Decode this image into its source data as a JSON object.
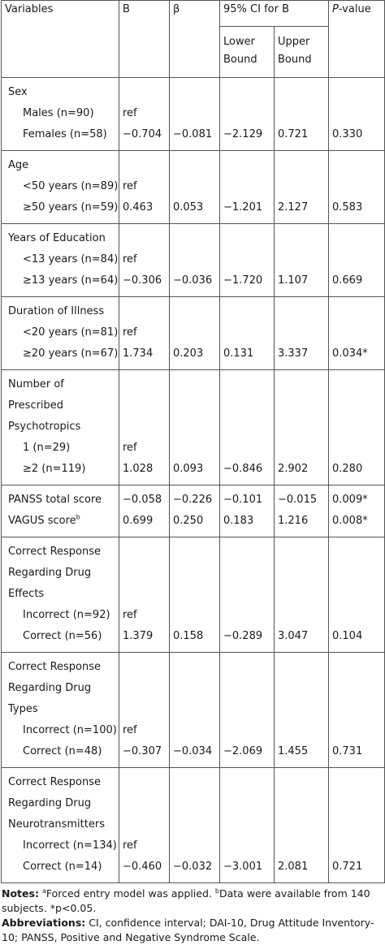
{
  "header": {
    "variables": "Variables",
    "b": "B",
    "beta": "β",
    "ci": "95% CI for B",
    "p": "P-value",
    "lower": "Lower Bound",
    "upper": "Upper Bound"
  },
  "rows": {
    "sex": {
      "label": "Sex",
      "a_label": "Males (n=90)",
      "a_b": "ref",
      "b_label": "Females (n=58)",
      "b_b": "−0.704",
      "b_beta": "−0.081",
      "b_lower": "−2.129",
      "b_upper": "0.721",
      "b_p": "0.330"
    },
    "age": {
      "label": "Age",
      "a_label": "<50 years (n=89)",
      "a_b": "ref",
      "b_label": "≥50 years (n=59)",
      "b_b": "0.463",
      "b_beta": "0.053",
      "b_lower": "−1.201",
      "b_upper": "2.127",
      "b_p": "0.583"
    },
    "edu": {
      "label": "Years of Education",
      "a_label": "<13 years (n=84)",
      "a_b": "ref",
      "b_label": "≥13 years (n=64)",
      "b_b": "−0.306",
      "b_beta": "−0.036",
      "b_lower": "−1.720",
      "b_upper": "1.107",
      "b_p": "0.669"
    },
    "ill": {
      "label": "Duration of Illness",
      "a_label": "<20 years (n=81)",
      "a_b": "ref",
      "b_label": "≥20 years (n=67)",
      "b_b": "1.734",
      "b_beta": "0.203",
      "b_lower": "0.131",
      "b_upper": "3.337",
      "b_p": "0.034*"
    },
    "psy": {
      "label_1": "Number of",
      "label_2": "Prescribed",
      "label_3": "Psychotropics",
      "a_label": "1 (n=29)",
      "a_b": "ref",
      "b_label": "≥2 (n=119)",
      "b_b": "1.028",
      "b_beta": "0.093",
      "b_lower": "−0.846",
      "b_upper": "2.902",
      "b_p": "0.280"
    },
    "panss": {
      "label": "PANSS total score",
      "b": "−0.058",
      "beta": "−0.226",
      "lower": "−0.101",
      "upper": "−0.015",
      "p": "0.009*"
    },
    "vagus": {
      "label": "VAGUS score",
      "sup": "b",
      "b": "0.699",
      "beta": "0.250",
      "lower": "0.183",
      "upper": "1.216",
      "p": "0.008*"
    },
    "eff": {
      "label_1": "Correct Response",
      "label_2": "Regarding Drug",
      "label_3": "Effects",
      "a_label": "Incorrect (n=92)",
      "a_b": "ref",
      "b_label": "Correct (n=56)",
      "b_b": "1.379",
      "b_beta": "0.158",
      "b_lower": "−0.289",
      "b_upper": "3.047",
      "b_p": "0.104"
    },
    "typ": {
      "label_1": "Correct Response",
      "label_2": "Regarding Drug",
      "label_3": "Types",
      "a_label": "Incorrect (n=100)",
      "a_b": "ref",
      "b_label": "Correct (n=48)",
      "b_b": "−0.307",
      "b_beta": "−0.034",
      "b_lower": "−2.069",
      "b_upper": "1.455",
      "b_p": "0.731"
    },
    "neu": {
      "label_1": "Correct Response",
      "label_2": "Regarding Drug",
      "label_3": "Neurotransmitters",
      "a_label": "Incorrect (n=134)",
      "a_b": "ref",
      "b_label": "Correct (n=14)",
      "b_b": "−0.460",
      "b_beta": "−0.032",
      "b_lower": "−3.001",
      "b_upper": "2.081",
      "b_p": "0.721"
    }
  },
  "notes": {
    "notes_label": "Notes:",
    "sup_a": "a",
    "note_a": "Forced entry model was applied.",
    "sup_b": "b",
    "note_b": "Data were available from 140 subjects.",
    "note_p": "*p<0.05.",
    "abbr_label": "Abbreviations:",
    "abbr_text": "CI, confidence interval; DAI-10, Drug Attitude Inventory-10; PANSS, Positive and Negative Syndrome Scale."
  }
}
